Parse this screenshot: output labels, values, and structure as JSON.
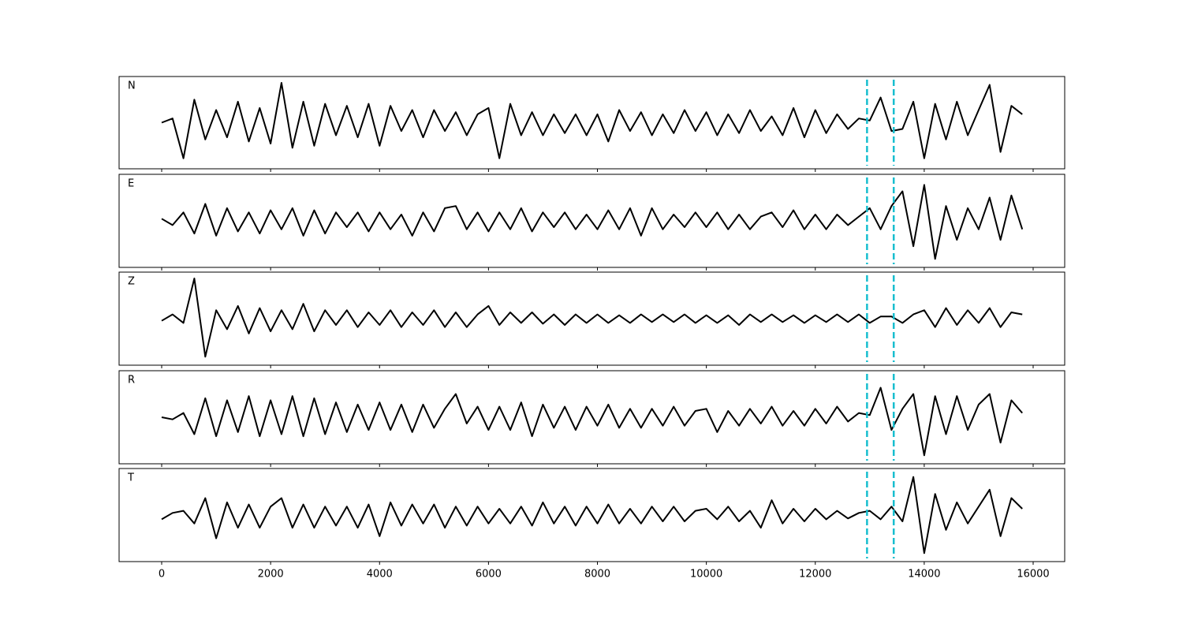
{
  "chart_data": {
    "type": "line",
    "x": [
      0,
      200,
      400,
      600,
      800,
      1000,
      1200,
      1400,
      1600,
      1800,
      2000,
      2200,
      2400,
      2600,
      2800,
      3000,
      3200,
      3400,
      3600,
      3800,
      4000,
      4200,
      4400,
      4600,
      4800,
      5000,
      5200,
      5400,
      5600,
      5800,
      6000,
      6200,
      6400,
      6600,
      6800,
      7000,
      7200,
      7400,
      7600,
      7800,
      8000,
      8200,
      8400,
      8600,
      8800,
      9000,
      9200,
      9400,
      9600,
      9800,
      10000,
      10200,
      10400,
      10600,
      10800,
      11000,
      11200,
      11400,
      11600,
      11800,
      12000,
      12200,
      12400,
      12600,
      12800,
      13000,
      13200,
      13400,
      13600,
      13800,
      14000,
      14200,
      14400,
      14600,
      14800,
      15000,
      15200,
      15400,
      15600,
      15800
    ],
    "xlim": [
      -782,
      16579
    ],
    "xticks": [
      0,
      2000,
      4000,
      6000,
      8000,
      10000,
      12000,
      14000,
      16000
    ],
    "ylim": [
      -1.1,
      1.1
    ],
    "color": "#000000",
    "series": [
      {
        "name": "N",
        "values": [
          0.0,
          0.1,
          -0.85,
          0.55,
          -0.4,
          0.3,
          -0.35,
          0.5,
          -0.45,
          0.35,
          -0.5,
          0.95,
          -0.6,
          0.5,
          -0.55,
          0.45,
          -0.3,
          0.4,
          -0.35,
          0.45,
          -0.55,
          0.4,
          -0.2,
          0.3,
          -0.35,
          0.3,
          -0.2,
          0.25,
          -0.3,
          0.2,
          0.35,
          -0.85,
          0.45,
          -0.3,
          0.25,
          -0.3,
          0.2,
          -0.25,
          0.2,
          -0.3,
          0.2,
          -0.45,
          0.3,
          -0.2,
          0.25,
          -0.3,
          0.2,
          -0.25,
          0.3,
          -0.2,
          0.25,
          -0.3,
          0.2,
          -0.25,
          0.3,
          -0.2,
          0.15,
          -0.3,
          0.35,
          -0.35,
          0.3,
          -0.25,
          0.2,
          -0.15,
          0.1,
          0.05,
          0.6,
          -0.2,
          -0.15,
          0.5,
          -0.85,
          0.45,
          -0.4,
          0.5,
          -0.3,
          0.3,
          0.9,
          -0.7,
          0.4,
          0.2
        ]
      },
      {
        "name": "E",
        "values": [
          0.05,
          -0.1,
          0.2,
          -0.3,
          0.4,
          -0.35,
          0.3,
          -0.25,
          0.2,
          -0.3,
          0.25,
          -0.2,
          0.3,
          -0.35,
          0.25,
          -0.3,
          0.2,
          -0.15,
          0.2,
          -0.25,
          0.2,
          -0.2,
          0.15,
          -0.35,
          0.2,
          -0.25,
          0.3,
          0.35,
          -0.2,
          0.2,
          -0.25,
          0.2,
          -0.2,
          0.3,
          -0.25,
          0.2,
          -0.15,
          0.2,
          -0.2,
          0.15,
          -0.2,
          0.25,
          -0.2,
          0.3,
          -0.35,
          0.3,
          -0.2,
          0.15,
          -0.15,
          0.2,
          -0.15,
          0.2,
          -0.2,
          0.15,
          -0.2,
          0.1,
          0.2,
          -0.15,
          0.25,
          -0.2,
          0.15,
          -0.2,
          0.15,
          -0.1,
          0.1,
          0.3,
          -0.2,
          0.35,
          0.7,
          -0.6,
          0.85,
          -0.9,
          0.35,
          -0.45,
          0.3,
          -0.2,
          0.55,
          -0.45,
          0.6,
          -0.2
        ]
      },
      {
        "name": "Z",
        "values": [
          -0.05,
          0.1,
          -0.1,
          0.95,
          -0.9,
          0.2,
          -0.25,
          0.3,
          -0.35,
          0.25,
          -0.3,
          0.2,
          -0.25,
          0.35,
          -0.3,
          0.2,
          -0.15,
          0.2,
          -0.2,
          0.15,
          -0.15,
          0.2,
          -0.2,
          0.15,
          -0.15,
          0.2,
          -0.2,
          0.15,
          -0.2,
          0.1,
          0.3,
          -0.15,
          0.15,
          -0.1,
          0.15,
          -0.12,
          0.1,
          -0.15,
          0.1,
          -0.1,
          0.1,
          -0.1,
          0.08,
          -0.1,
          0.1,
          -0.08,
          0.1,
          -0.08,
          0.1,
          -0.1,
          0.08,
          -0.1,
          0.08,
          -0.15,
          0.1,
          -0.08,
          0.1,
          -0.08,
          0.08,
          -0.1,
          0.08,
          -0.08,
          0.1,
          -0.08,
          0.1,
          -0.1,
          0.05,
          0.05,
          -0.1,
          0.1,
          0.2,
          -0.2,
          0.25,
          -0.15,
          0.2,
          -0.1,
          0.25,
          -0.2,
          0.15,
          0.1
        ]
      },
      {
        "name": "R",
        "values": [
          0.0,
          -0.05,
          0.1,
          -0.4,
          0.45,
          -0.45,
          0.4,
          -0.35,
          0.5,
          -0.45,
          0.4,
          -0.4,
          0.5,
          -0.45,
          0.45,
          -0.4,
          0.35,
          -0.35,
          0.3,
          -0.3,
          0.35,
          -0.3,
          0.3,
          -0.35,
          0.3,
          -0.25,
          0.2,
          0.55,
          -0.15,
          0.25,
          -0.3,
          0.25,
          -0.3,
          0.35,
          -0.45,
          0.3,
          -0.25,
          0.25,
          -0.3,
          0.25,
          -0.2,
          0.3,
          -0.25,
          0.2,
          -0.25,
          0.2,
          -0.2,
          0.25,
          -0.2,
          0.15,
          0.2,
          -0.35,
          0.15,
          -0.2,
          0.2,
          -0.15,
          0.25,
          -0.2,
          0.15,
          -0.2,
          0.2,
          -0.15,
          0.25,
          -0.1,
          0.1,
          0.05,
          0.7,
          -0.3,
          0.2,
          0.55,
          -0.9,
          0.5,
          -0.4,
          0.5,
          -0.3,
          0.3,
          0.55,
          -0.6,
          0.4,
          0.1
        ]
      },
      {
        "name": "T",
        "values": [
          -0.1,
          0.05,
          0.1,
          -0.2,
          0.4,
          -0.55,
          0.3,
          -0.3,
          0.25,
          -0.3,
          0.2,
          0.4,
          -0.3,
          0.25,
          -0.3,
          0.2,
          -0.25,
          0.2,
          -0.3,
          0.25,
          -0.5,
          0.3,
          -0.25,
          0.25,
          -0.2,
          0.25,
          -0.3,
          0.2,
          -0.25,
          0.2,
          -0.2,
          0.15,
          -0.2,
          0.2,
          -0.25,
          0.3,
          -0.2,
          0.2,
          -0.25,
          0.2,
          -0.2,
          0.25,
          -0.2,
          0.15,
          -0.2,
          0.2,
          -0.15,
          0.2,
          -0.15,
          0.1,
          0.15,
          -0.1,
          0.2,
          -0.15,
          0.1,
          -0.3,
          0.35,
          -0.2,
          0.15,
          -0.15,
          0.15,
          -0.1,
          0.1,
          -0.08,
          0.05,
          0.1,
          -0.1,
          0.2,
          -0.15,
          0.9,
          -0.9,
          0.5,
          -0.35,
          0.3,
          -0.2,
          0.2,
          0.6,
          -0.5,
          0.4,
          0.15
        ]
      }
    ],
    "vlines": {
      "values": [
        12950,
        13440
      ],
      "color": "#17becf"
    }
  }
}
